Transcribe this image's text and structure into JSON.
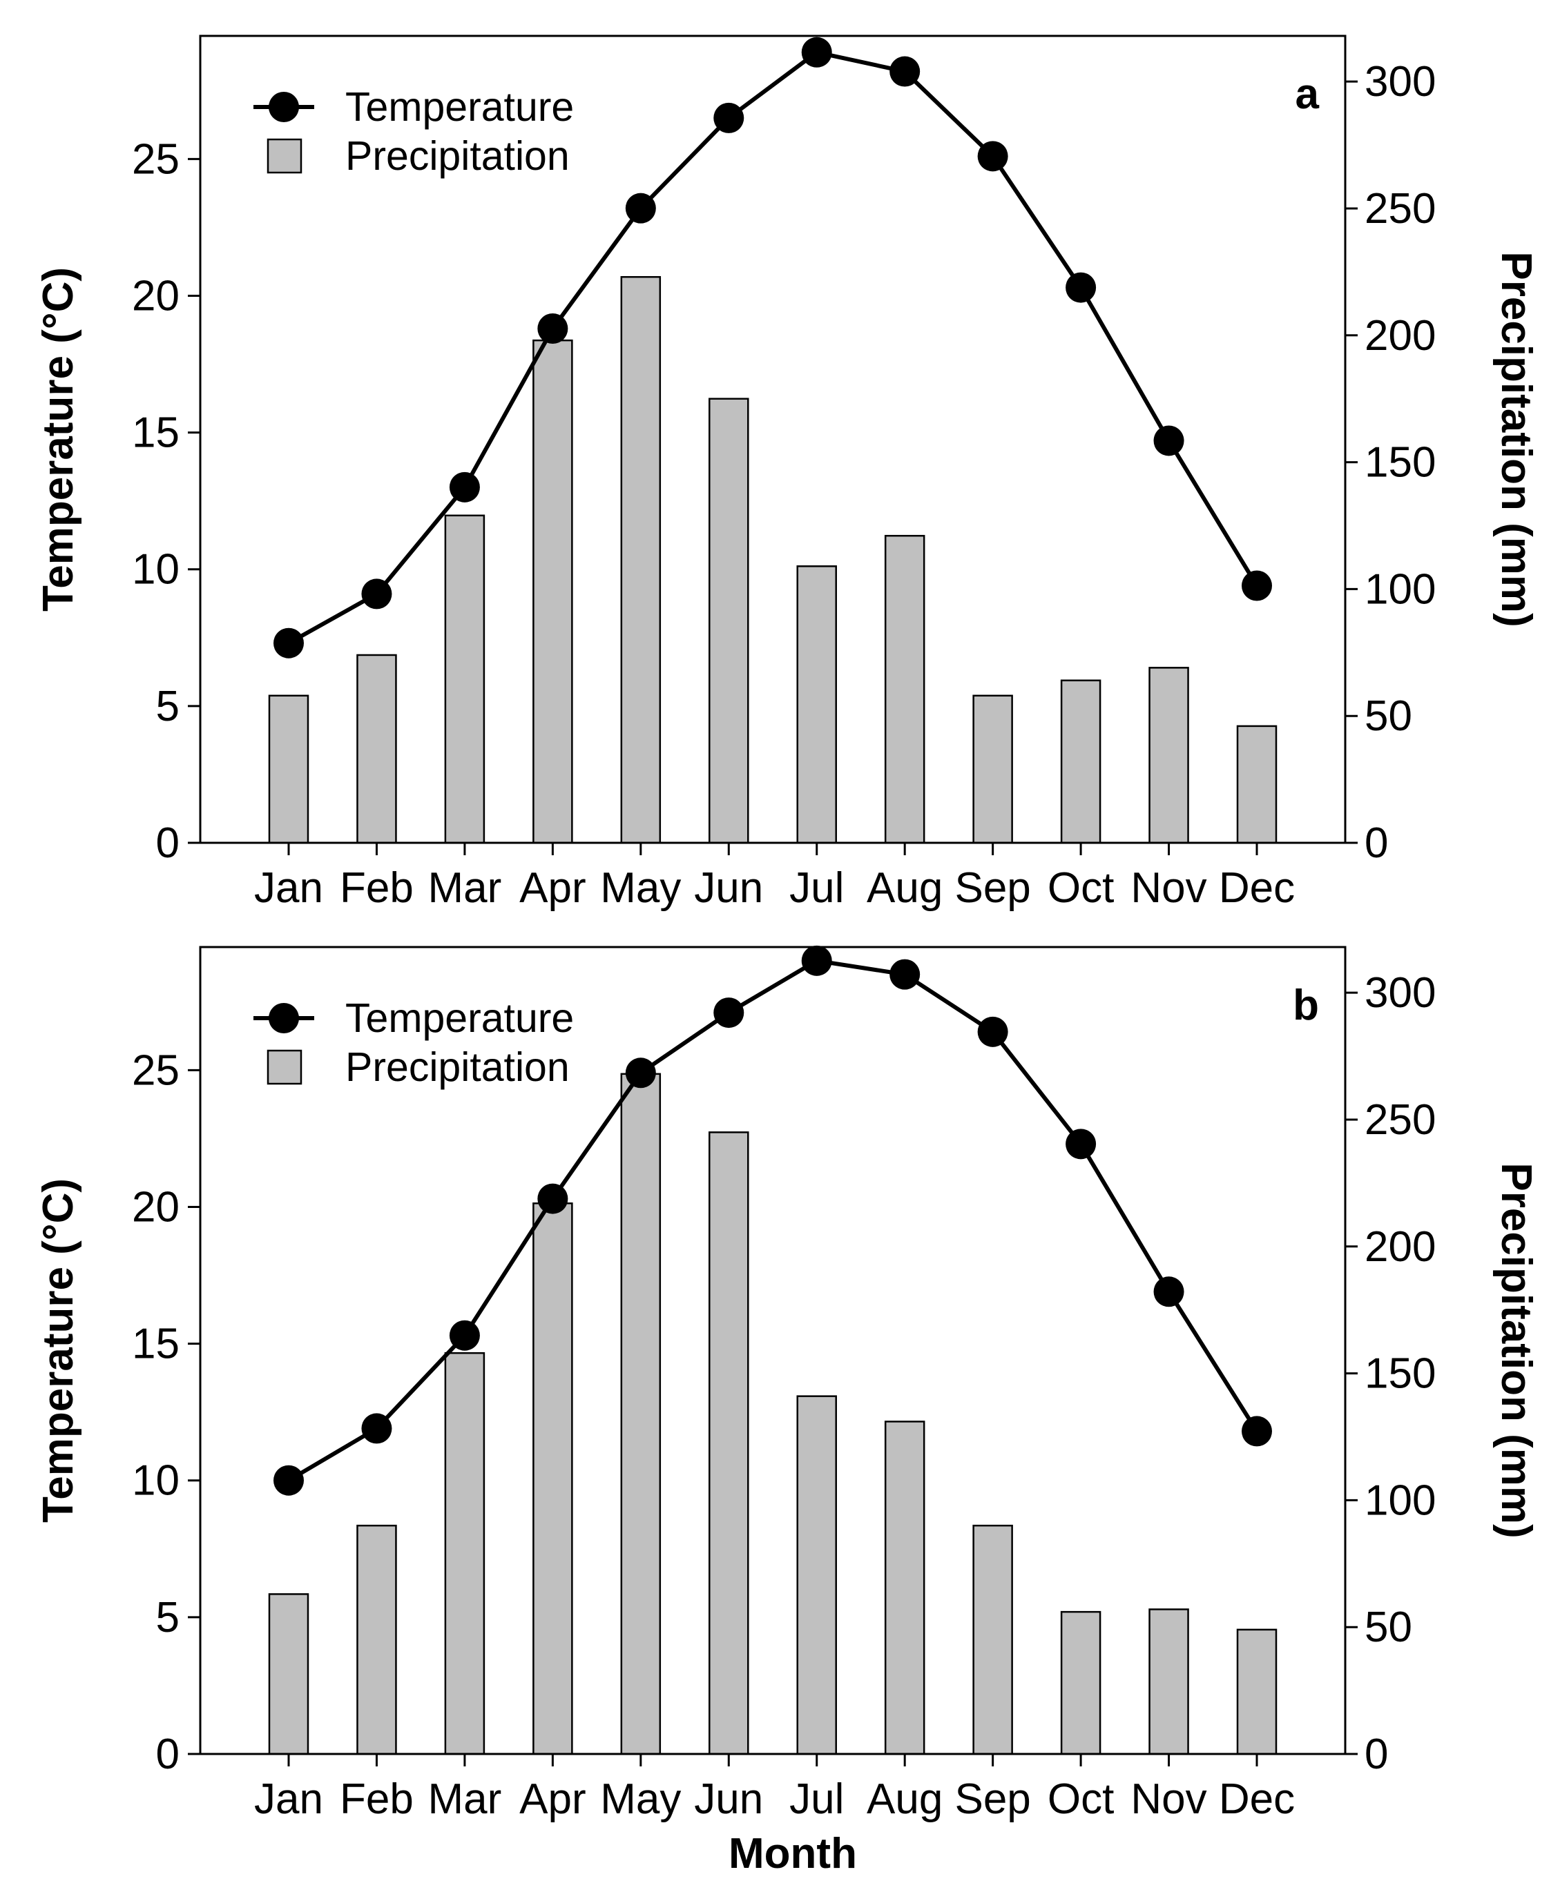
{
  "chart_data": {
    "xlabel": "Month",
    "panels": [
      {
        "label": "a",
        "type": "bar+line",
        "categories": [
          "Jan",
          "Feb",
          "Mar",
          "Apr",
          "May",
          "Jun",
          "Jul",
          "Aug",
          "Sep",
          "Oct",
          "Nov",
          "Dec"
        ],
        "series": [
          {
            "name": "Temperature",
            "type": "line",
            "axis": "left",
            "values": [
              7.3,
              9.1,
              13.0,
              18.8,
              23.2,
              26.5,
              28.9,
              28.2,
              25.1,
              20.3,
              14.7,
              9.4
            ]
          },
          {
            "name": "Precipitation",
            "type": "bar",
            "axis": "right",
            "values": [
              58,
              74,
              129,
              198,
              223,
              175,
              109,
              121,
              58,
              64,
              69,
              46
            ]
          }
        ],
        "ylabel_left": "Temperature (°C)",
        "ylabel_right": "Precipitation (mm)",
        "ylim_left": [
          0,
          29.5
        ],
        "ylim_right": [
          0,
          318
        ],
        "yticks_left": [
          0,
          5,
          10,
          15,
          20,
          25
        ],
        "yticks_right": [
          0,
          50,
          100,
          150,
          200,
          250,
          300
        ],
        "legend_position": "top-left",
        "grid": false
      },
      {
        "label": "b",
        "type": "bar+line",
        "categories": [
          "Jan",
          "Feb",
          "Mar",
          "Apr",
          "May",
          "Jun",
          "Jul",
          "Aug",
          "Sep",
          "Oct",
          "Nov",
          "Dec"
        ],
        "series": [
          {
            "name": "Temperature",
            "type": "line",
            "axis": "left",
            "values": [
              10.0,
              11.9,
              15.3,
              20.3,
              24.9,
              27.1,
              29.0,
              28.5,
              26.4,
              22.3,
              16.9,
              11.8
            ]
          },
          {
            "name": "Precipitation",
            "type": "bar",
            "axis": "right",
            "values": [
              63,
              90,
              158,
              217,
              268,
              245,
              141,
              131,
              90,
              56,
              57,
              49
            ]
          }
        ],
        "ylabel_left": "Temperature (°C)",
        "ylabel_right": "Precipitation (mm)",
        "ylim_left": [
          0,
          29.5
        ],
        "ylim_right": [
          0,
          318
        ],
        "yticks_left": [
          0,
          5,
          10,
          15,
          20,
          25
        ],
        "yticks_right": [
          0,
          50,
          100,
          150,
          200,
          250,
          300
        ],
        "legend_position": "top-left",
        "grid": false
      }
    ]
  },
  "colors": {
    "bar_fill": "#c0c0c0",
    "bar_stroke": "#000000",
    "line": "#000000",
    "marker": "#000000",
    "axis": "#000000"
  }
}
